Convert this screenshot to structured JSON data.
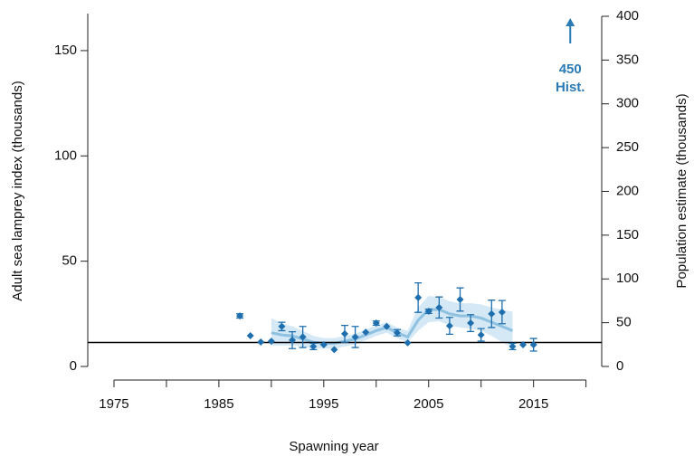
{
  "chart_data": {
    "type": "scatter",
    "x_label": "Spawning year",
    "y_label": "Adult sea lamprey index  (thousands)",
    "y2_label": "Population estimate  (thousands)",
    "xlim": [
      1972.5,
      2021.5
    ],
    "xticks": [
      1975,
      1985,
      1995,
      2005,
      2015
    ],
    "minor_xticks": [
      1980,
      1990,
      2000,
      2010,
      2020
    ],
    "ylim": [
      0,
      166.3
    ],
    "yticks": [
      0,
      50,
      100,
      150
    ],
    "y2lim": [
      0,
      400
    ],
    "y2ticks": [
      0,
      50,
      100,
      150,
      200,
      250,
      300,
      350,
      400
    ],
    "points": {
      "color": "#1f6fae",
      "x": [
        1987,
        1988,
        1989,
        1990,
        1991,
        1992,
        1993,
        1994,
        1995,
        1996,
        1997,
        1998,
        1999,
        2000,
        2001,
        2002,
        2003,
        2004,
        2005,
        2006,
        2007,
        2008,
        2009,
        2010,
        2011,
        2012,
        2013,
        2014,
        2015
      ],
      "values": [
        24,
        14.6,
        11.6,
        12,
        19,
        12.5,
        14,
        9.5,
        10.3,
        8,
        15.5,
        14,
        16.3,
        20.6,
        19,
        16,
        11.2,
        32.7,
        26.2,
        28,
        19.3,
        31.8,
        20.6,
        15,
        25,
        25.8,
        9.5,
        10.3,
        10.3
      ],
      "errors": [
        1,
        null,
        null,
        null,
        2,
        4,
        5,
        1.5,
        null,
        null,
        4,
        5,
        null,
        1,
        null,
        1.5,
        null,
        7,
        1,
        5,
        4,
        5.5,
        4,
        3,
        6.5,
        5.5,
        1.5,
        null,
        3
      ]
    },
    "smooth": {
      "color": "#8fc1e0",
      "band_color": "#c6e0f1",
      "x": [
        1990,
        1991,
        1992,
        1993,
        1994,
        1995,
        1996,
        1997,
        1998,
        1999,
        2000,
        2001,
        2002,
        2003,
        2004,
        2005,
        2006,
        2007,
        2008,
        2009,
        2010,
        2011,
        2012,
        2013
      ],
      "values": [
        16,
        15,
        14.5,
        13,
        11.5,
        11,
        11,
        12,
        13,
        15,
        17,
        18.5,
        16,
        14,
        22,
        27,
        27,
        25,
        24,
        24,
        23,
        21,
        19,
        17
      ],
      "lower": [
        10,
        10,
        10,
        9.5,
        8.5,
        8.5,
        8.5,
        9.5,
        10.5,
        12.5,
        14.5,
        16,
        13.5,
        11.5,
        17,
        21,
        21.5,
        19.5,
        18.5,
        18,
        17,
        14.5,
        11.5,
        9
      ],
      "upper": [
        23,
        20.5,
        19,
        17,
        14.5,
        13.5,
        13.5,
        14.5,
        15.5,
        17.5,
        19.5,
        21,
        18.5,
        17,
        28,
        33.5,
        33,
        31,
        30,
        30,
        29.5,
        28,
        27,
        26
      ]
    },
    "target": {
      "value": 11.4,
      "color": "#000000"
    },
    "annotation": {
      "lines": [
        "450",
        "Hist."
      ],
      "x": 2018.5,
      "color": "#2a7ab5"
    }
  }
}
